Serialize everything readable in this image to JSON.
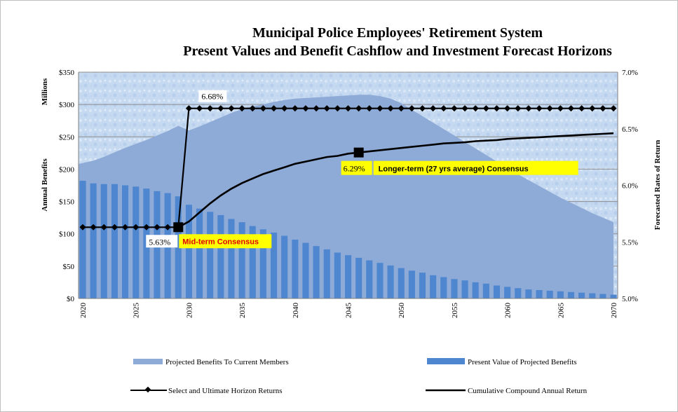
{
  "chart_data": {
    "type": "bar",
    "title": [
      "Municipal Police Employees' Retirement System",
      "Present Values and Benefit Cashflow and Investment Forecast Horizons"
    ],
    "y_unit": "Millions",
    "ylabel_left": "Annual Benefits",
    "ylabel_right": "Forecasted Rates of Return",
    "ylim_left": [
      0,
      350
    ],
    "ylim_right": [
      5.0,
      7.0
    ],
    "xlim": [
      2020,
      2070
    ],
    "yticks_left": [
      "$0",
      "$50",
      "$100",
      "$150",
      "$200",
      "$250",
      "$300",
      "$350"
    ],
    "yticks_left_values": [
      0,
      50,
      100,
      150,
      200,
      250,
      300,
      350
    ],
    "yticks_right": [
      "5.0%",
      "5.5%",
      "6.0%",
      "6.5%",
      "7.0%"
    ],
    "yticks_right_values": [
      5.0,
      5.5,
      6.0,
      6.5,
      7.0
    ],
    "xticks": [
      "2020",
      "2025",
      "2030",
      "2035",
      "2040",
      "2045",
      "2050",
      "2055",
      "2060",
      "2065",
      "2070"
    ],
    "xticks_values": [
      2020,
      2025,
      2030,
      2035,
      2040,
      2045,
      2050,
      2055,
      2060,
      2065,
      2070
    ],
    "grid": "horizontal",
    "legend_position": "bottom",
    "series": [
      {
        "name": "Projected Benefits To Current Members",
        "kind": "area",
        "axis": "left",
        "color": "#8eaad6",
        "x": [
          2020,
          2021,
          2022,
          2023,
          2024,
          2025,
          2026,
          2027,
          2028,
          2029,
          2030,
          2031,
          2032,
          2033,
          2034,
          2035,
          2036,
          2037,
          2038,
          2039,
          2040,
          2041,
          2042,
          2043,
          2044,
          2045,
          2046,
          2047,
          2048,
          2049,
          2050,
          2051,
          2052,
          2053,
          2054,
          2055,
          2056,
          2057,
          2058,
          2059,
          2060,
          2061,
          2062,
          2063,
          2064,
          2065,
          2066,
          2067,
          2068,
          2069,
          2070
        ],
        "values": [
          208,
          213,
          219,
          226,
          233,
          239,
          245,
          252,
          259,
          267,
          260,
          266,
          273,
          280,
          287,
          293,
          297,
          300,
          304,
          307,
          309,
          310,
          311,
          312,
          313,
          314,
          315,
          315,
          313,
          309,
          302,
          292,
          282,
          272,
          262,
          252,
          242,
          232,
          222,
          212,
          202,
          192,
          183,
          174,
          165,
          156,
          148,
          140,
          132,
          125,
          118
        ]
      },
      {
        "name": "Present Value of Projected Benefits",
        "kind": "bar",
        "axis": "left",
        "color": "#4f86d0",
        "x": [
          2020,
          2021,
          2022,
          2023,
          2024,
          2025,
          2026,
          2027,
          2028,
          2029,
          2030,
          2031,
          2032,
          2033,
          2034,
          2035,
          2036,
          2037,
          2038,
          2039,
          2040,
          2041,
          2042,
          2043,
          2044,
          2045,
          2046,
          2047,
          2048,
          2049,
          2050,
          2051,
          2052,
          2053,
          2054,
          2055,
          2056,
          2057,
          2058,
          2059,
          2060,
          2061,
          2062,
          2063,
          2064,
          2065,
          2066,
          2067,
          2068,
          2069,
          2070
        ],
        "values": [
          182,
          178,
          177,
          177,
          175,
          173,
          170,
          166,
          163,
          158,
          145,
          139,
          134,
          129,
          123,
          118,
          112,
          107,
          102,
          97,
          91,
          86,
          81,
          76,
          71,
          67,
          63,
          59,
          55,
          51,
          47,
          43,
          40,
          36,
          33,
          30,
          28,
          25,
          23,
          20,
          18,
          16,
          14,
          13,
          12,
          11,
          10,
          9,
          8,
          7,
          6
        ]
      },
      {
        "name": "Select and Ultimate Horizon Returns",
        "kind": "line-markers",
        "axis": "right",
        "color": "#000000",
        "x": [
          2020,
          2021,
          2022,
          2023,
          2024,
          2025,
          2026,
          2027,
          2028,
          2029,
          2030,
          2031,
          2032,
          2033,
          2034,
          2035,
          2036,
          2037,
          2038,
          2039,
          2040,
          2041,
          2042,
          2043,
          2044,
          2045,
          2046,
          2047,
          2048,
          2049,
          2050,
          2051,
          2052,
          2053,
          2054,
          2055,
          2056,
          2057,
          2058,
          2059,
          2060,
          2061,
          2062,
          2063,
          2064,
          2065,
          2066,
          2067,
          2068,
          2069,
          2070
        ],
        "values": [
          5.63,
          5.63,
          5.63,
          5.63,
          5.63,
          5.63,
          5.63,
          5.63,
          5.63,
          5.63,
          6.68,
          6.68,
          6.68,
          6.68,
          6.68,
          6.68,
          6.68,
          6.68,
          6.68,
          6.68,
          6.68,
          6.68,
          6.68,
          6.68,
          6.68,
          6.68,
          6.68,
          6.68,
          6.68,
          6.68,
          6.68,
          6.68,
          6.68,
          6.68,
          6.68,
          6.68,
          6.68,
          6.68,
          6.68,
          6.68,
          6.68,
          6.68,
          6.68,
          6.68,
          6.68,
          6.68,
          6.68,
          6.68,
          6.68,
          6.68,
          6.68
        ]
      },
      {
        "name": "Cumulative Compound Annual Return",
        "kind": "line",
        "axis": "right",
        "color": "#000000",
        "x": [
          2029,
          2030,
          2031,
          2032,
          2033,
          2034,
          2035,
          2036,
          2037,
          2038,
          2039,
          2040,
          2041,
          2042,
          2043,
          2044,
          2045,
          2046,
          2047,
          2048,
          2049,
          2050,
          2051,
          2052,
          2053,
          2054,
          2055,
          2056,
          2057,
          2058,
          2059,
          2060,
          2061,
          2062,
          2063,
          2064,
          2065,
          2066,
          2067,
          2068,
          2069,
          2070
        ],
        "values": [
          5.63,
          5.68,
          5.76,
          5.84,
          5.91,
          5.97,
          6.02,
          6.06,
          6.1,
          6.13,
          6.16,
          6.19,
          6.21,
          6.23,
          6.25,
          6.26,
          6.28,
          6.29,
          6.3,
          6.31,
          6.32,
          6.33,
          6.34,
          6.35,
          6.36,
          6.37,
          6.375,
          6.38,
          6.39,
          6.395,
          6.4,
          6.41,
          6.415,
          6.42,
          6.425,
          6.43,
          6.435,
          6.44,
          6.445,
          6.45,
          6.455,
          6.46
        ]
      }
    ],
    "annotations": [
      {
        "label": "6.68%",
        "x": 2030,
        "y": 6.68,
        "axis": "right"
      },
      {
        "label": "5.63%",
        "callout": "Mid-term Consensus",
        "x": 2029,
        "y": 5.63,
        "axis": "right",
        "callout_text_color": "#e00000",
        "callout_fill": "#ffff00"
      },
      {
        "label": "6.29%",
        "callout": "Longer-term (27 yrs average) Consensus",
        "x": 2046,
        "y": 6.29,
        "axis": "right",
        "callout_text_color": "#000000",
        "callout_fill": "#ffff00"
      }
    ]
  }
}
